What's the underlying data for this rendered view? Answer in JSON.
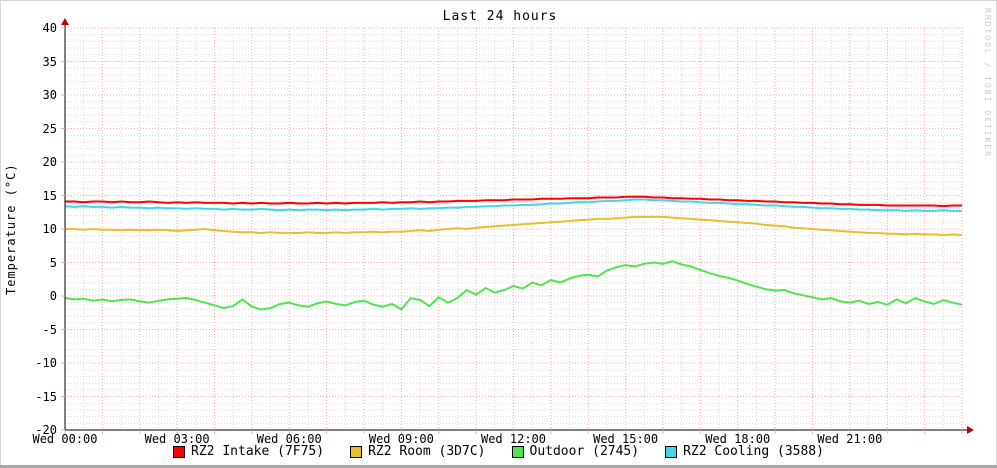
{
  "title": "Last 24 hours",
  "watermark": "RRDTOOL / TOBI OETIKER",
  "chart_data": {
    "type": "line",
    "title": "Last 24 hours",
    "xlabel": "",
    "ylabel": "Temperature (°C)",
    "ylim": [
      -20,
      40
    ],
    "y_major_step": 5,
    "y_minor_step": 1,
    "x_hours": 24,
    "x_minor_step_hours": 0.5,
    "x_major_step_hours": 1,
    "x_label_step_hours": 3,
    "sample_interval_minutes": 15,
    "grid": true,
    "legend_position": "bottom",
    "y_tick_labels": [
      "40",
      "35",
      "30",
      "25",
      "20",
      "15",
      "10",
      "5",
      "0",
      "-5",
      "-10",
      "-15",
      "-20"
    ],
    "x_tick_labels": [
      "Wed 00:00",
      "Wed 03:00",
      "Wed 06:00",
      "Wed 09:00",
      "Wed 12:00",
      "Wed 15:00",
      "Wed 18:00",
      "Wed 21:00"
    ],
    "colors": {
      "major_grid": "#f2a9a9",
      "minor_grid": "#d9d9d9",
      "axis": "#000000",
      "arrow": "#c00000",
      "background": "#ffffff"
    },
    "series": [
      {
        "name": "RZ2 Intake (7F75)",
        "color": "#ff0000",
        "values": [
          14.1,
          14.1,
          14.0,
          14.1,
          14.1,
          14.0,
          14.1,
          14.0,
          14.0,
          14.1,
          14.0,
          13.9,
          14.0,
          13.9,
          14.0,
          13.9,
          13.9,
          13.9,
          13.8,
          13.9,
          13.8,
          13.9,
          13.8,
          13.8,
          13.9,
          13.8,
          13.8,
          13.9,
          13.8,
          13.9,
          13.8,
          13.9,
          13.9,
          13.9,
          14.0,
          13.9,
          14.0,
          14.0,
          14.1,
          14.0,
          14.1,
          14.1,
          14.2,
          14.2,
          14.2,
          14.3,
          14.3,
          14.3,
          14.4,
          14.4,
          14.4,
          14.5,
          14.5,
          14.5,
          14.6,
          14.6,
          14.6,
          14.7,
          14.7,
          14.7,
          14.8,
          14.8,
          14.8,
          14.7,
          14.7,
          14.6,
          14.6,
          14.5,
          14.5,
          14.4,
          14.4,
          14.3,
          14.3,
          14.2,
          14.2,
          14.1,
          14.1,
          14.0,
          14.0,
          13.9,
          13.9,
          13.8,
          13.8,
          13.7,
          13.7,
          13.6,
          13.6,
          13.6,
          13.5,
          13.5,
          13.5,
          13.5,
          13.5,
          13.5,
          13.4,
          13.5,
          13.5
        ]
      },
      {
        "name": "RZ2 Room (3D7C)",
        "color": "#e5c12e",
        "values": [
          10.0,
          10.0,
          9.9,
          10.0,
          9.9,
          9.9,
          9.8,
          9.9,
          9.8,
          9.8,
          9.9,
          9.8,
          9.7,
          9.8,
          9.9,
          10.0,
          9.8,
          9.7,
          9.6,
          9.5,
          9.5,
          9.4,
          9.5,
          9.4,
          9.4,
          9.4,
          9.5,
          9.4,
          9.4,
          9.5,
          9.4,
          9.5,
          9.5,
          9.6,
          9.5,
          9.6,
          9.6,
          9.7,
          9.8,
          9.7,
          9.9,
          10.0,
          10.1,
          10.0,
          10.2,
          10.3,
          10.4,
          10.5,
          10.6,
          10.7,
          10.8,
          10.9,
          11.0,
          11.1,
          11.2,
          11.3,
          11.4,
          11.5,
          11.5,
          11.6,
          11.7,
          11.8,
          11.8,
          11.8,
          11.8,
          11.7,
          11.6,
          11.5,
          11.4,
          11.3,
          11.2,
          11.1,
          11.0,
          10.9,
          10.8,
          10.6,
          10.5,
          10.4,
          10.2,
          10.1,
          10.0,
          9.9,
          9.8,
          9.7,
          9.6,
          9.5,
          9.4,
          9.4,
          9.3,
          9.3,
          9.2,
          9.3,
          9.2,
          9.2,
          9.1,
          9.2,
          9.1
        ]
      },
      {
        "name": "Outdoor (2745)",
        "color": "#4fe54f",
        "values": [
          -0.3,
          -0.5,
          -0.4,
          -0.7,
          -0.5,
          -0.8,
          -0.6,
          -0.5,
          -0.8,
          -1.0,
          -0.7,
          -0.5,
          -0.4,
          -0.3,
          -0.6,
          -1.0,
          -1.4,
          -1.8,
          -1.5,
          -0.5,
          -1.6,
          -2.0,
          -1.8,
          -1.2,
          -1.0,
          -1.4,
          -1.6,
          -1.1,
          -0.8,
          -1.2,
          -1.4,
          -0.9,
          -0.7,
          -1.3,
          -1.6,
          -1.2,
          -2.0,
          -0.3,
          -0.6,
          -1.5,
          -0.2,
          -1.0,
          -0.3,
          0.9,
          0.2,
          1.2,
          0.5,
          0.9,
          1.5,
          1.1,
          2.0,
          1.6,
          2.4,
          2.0,
          2.6,
          3.0,
          3.2,
          2.9,
          3.8,
          4.3,
          4.6,
          4.4,
          4.8,
          5.0,
          4.8,
          5.2,
          4.7,
          4.4,
          3.9,
          3.4,
          3.0,
          2.7,
          2.3,
          1.8,
          1.4,
          1.0,
          0.8,
          0.9,
          0.4,
          0.1,
          -0.2,
          -0.5,
          -0.3,
          -0.8,
          -1.0,
          -0.7,
          -1.2,
          -0.9,
          -1.3,
          -0.5,
          -1.1,
          -0.3,
          -0.8,
          -1.2,
          -0.6,
          -1.0,
          -1.3
        ]
      },
      {
        "name": "RZ2 Cooling (3588)",
        "color": "#44d6e6",
        "values": [
          13.4,
          13.3,
          13.4,
          13.3,
          13.3,
          13.2,
          13.3,
          13.2,
          13.2,
          13.1,
          13.2,
          13.1,
          13.1,
          13.0,
          13.1,
          13.0,
          13.0,
          12.9,
          13.0,
          12.9,
          12.9,
          13.0,
          12.9,
          12.8,
          12.9,
          12.8,
          12.9,
          12.9,
          12.8,
          12.9,
          12.8,
          12.9,
          12.9,
          13.0,
          12.9,
          13.0,
          13.0,
          13.1,
          13.0,
          13.1,
          13.1,
          13.2,
          13.2,
          13.3,
          13.3,
          13.4,
          13.4,
          13.5,
          13.5,
          13.6,
          13.6,
          13.7,
          13.8,
          13.8,
          13.9,
          14.0,
          14.0,
          14.1,
          14.2,
          14.2,
          14.3,
          14.4,
          14.4,
          14.3,
          14.3,
          14.2,
          14.1,
          14.1,
          14.0,
          13.9,
          13.9,
          13.8,
          13.7,
          13.7,
          13.6,
          13.5,
          13.5,
          13.4,
          13.3,
          13.3,
          13.2,
          13.1,
          13.1,
          13.0,
          13.0,
          12.9,
          12.9,
          12.8,
          12.8,
          12.8,
          12.7,
          12.8,
          12.7,
          12.7,
          12.8,
          12.7,
          12.7
        ]
      }
    ]
  }
}
